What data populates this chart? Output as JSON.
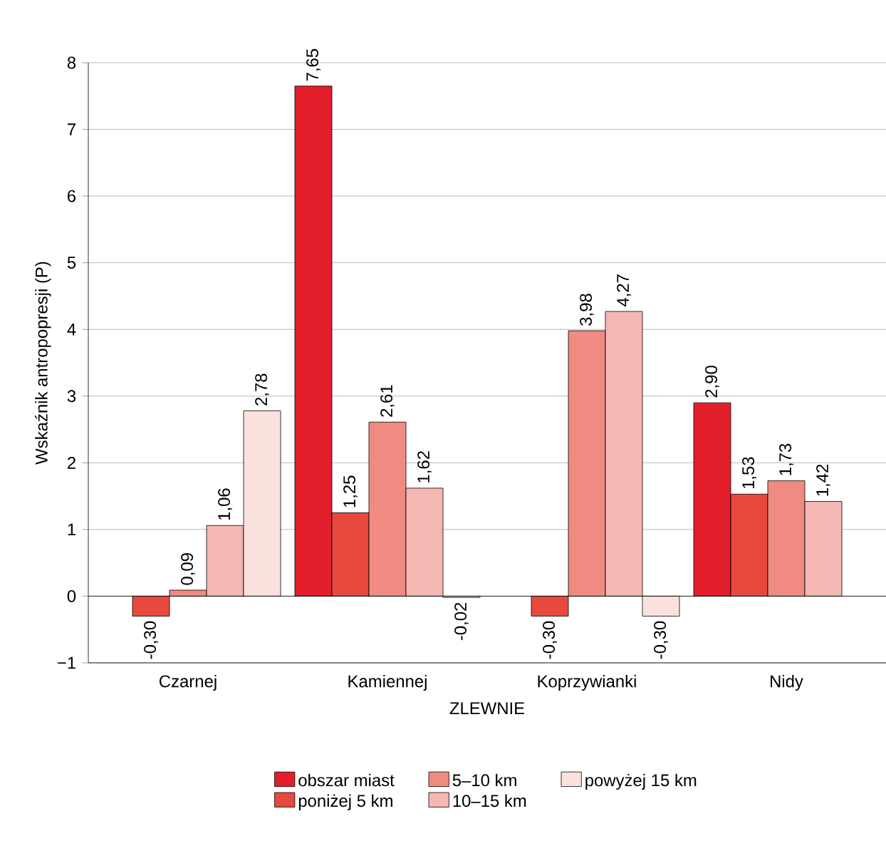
{
  "chart_data": {
    "type": "bar",
    "xlabel": "ZLEWNIE",
    "ylabel": "Wskaźnik antropopresji (P)",
    "categories": [
      "Czarnej",
      "Kamiennej",
      "Koprzywianki",
      "Nidy"
    ],
    "series": [
      {
        "name": "obszar miast",
        "color": "#e31e2b",
        "values": [
          null,
          7.65,
          null,
          2.9
        ],
        "value_labels": [
          null,
          "7,65",
          null,
          "2,90"
        ]
      },
      {
        "name": "poniżej 5 km",
        "color": "#e8493f",
        "values": [
          -0.3,
          1.25,
          -0.3,
          1.53
        ],
        "value_labels": [
          "-0,30",
          "1,25",
          "-0,30",
          "1,53"
        ]
      },
      {
        "name": "5–10 km",
        "color": "#f08b82",
        "values": [
          0.09,
          2.61,
          3.98,
          1.73
        ],
        "value_labels": [
          "0,09",
          "2,61",
          "3,98",
          "1,73"
        ]
      },
      {
        "name": "10–15 km",
        "color": "#f5b7b2",
        "values": [
          1.06,
          1.62,
          4.27,
          1.42
        ],
        "value_labels": [
          "1,06",
          "1,62",
          "4,27",
          "1,42"
        ]
      },
      {
        "name": "powyżej 15 km",
        "color": "#fbe1de",
        "values": [
          2.78,
          -0.02,
          -0.3,
          null
        ],
        "value_labels": [
          "2,78",
          "-0,02",
          "-0,30",
          null
        ]
      }
    ],
    "ylim": [
      -1,
      8
    ],
    "yticks": [
      {
        "value": -1,
        "label": "−1"
      },
      0,
      1,
      2,
      3,
      4,
      5,
      6,
      7,
      8
    ],
    "grid": "y",
    "legend": "bottom"
  }
}
